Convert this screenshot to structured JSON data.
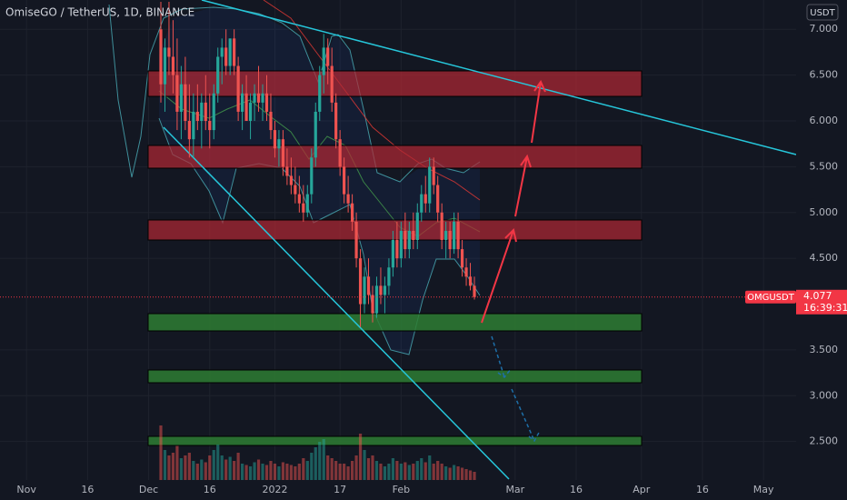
{
  "chart_data": {
    "type": "candlestick",
    "title": "OmiseGO / TetherUS, 1D, BINANCE",
    "currency": "USDT",
    "symbol": "OMGUSDT",
    "last_price": 4.077,
    "countdown": "16:39:31",
    "up_color": "#26a69a",
    "down_color": "#ef5350",
    "grid": true,
    "xlim": [
      -6.5,
      189
    ],
    "ylim": [
      2.08,
      7.32
    ],
    "xticks": [
      {
        "value": 0,
        "label": "Nov"
      },
      {
        "value": 15,
        "label": "16"
      },
      {
        "value": 30,
        "label": "Dec"
      },
      {
        "value": 45,
        "label": "16"
      },
      {
        "value": 61,
        "label": "2022"
      },
      {
        "value": 77,
        "label": "17"
      },
      {
        "value": 92,
        "label": "Feb"
      },
      {
        "value": 120,
        "label": "Mar"
      },
      {
        "value": 135,
        "label": "16"
      },
      {
        "value": 151,
        "label": "Apr"
      },
      {
        "value": 166,
        "label": "16"
      },
      {
        "value": 181,
        "label": "May"
      }
    ],
    "yticks": [
      {
        "value": 7,
        "label": "7.000"
      },
      {
        "value": 6.5,
        "label": "6.500"
      },
      {
        "value": 6,
        "label": "6.000"
      },
      {
        "value": 5.5,
        "label": "5.500"
      },
      {
        "value": 5,
        "label": "5.000"
      },
      {
        "value": 4.5,
        "label": "4.500"
      },
      {
        "value": 3.5,
        "label": "3.500"
      },
      {
        "value": 3,
        "label": "3.000"
      },
      {
        "value": 2.5,
        "label": "2.500"
      }
    ],
    "x": [
      33,
      34,
      35,
      36,
      37,
      38,
      39,
      40,
      41,
      42,
      43,
      44,
      45,
      46,
      47,
      48,
      49,
      50,
      51,
      52,
      53,
      54,
      55,
      56,
      57,
      58,
      59,
      60,
      61,
      62,
      63,
      64,
      65,
      66,
      67,
      68,
      69,
      70,
      71,
      72,
      73,
      74,
      75,
      76,
      77,
      78,
      79,
      80,
      81,
      82,
      83,
      84,
      85,
      86,
      87,
      88,
      89,
      90,
      91,
      92,
      93,
      94,
      95,
      96,
      97,
      98,
      99,
      100,
      101,
      102,
      103,
      104,
      105,
      106,
      107,
      108,
      109,
      110
    ],
    "open": [
      7.0,
      6.4,
      6.8,
      6.7,
      6.5,
      6.1,
      6.4,
      6.0,
      5.8,
      6.1,
      6.0,
      6.2,
      6.0,
      5.9,
      6.3,
      6.7,
      6.8,
      6.6,
      6.9,
      6.6,
      6.1,
      6.3,
      6.0,
      6.2,
      6.3,
      6.2,
      6.3,
      6.1,
      5.9,
      5.7,
      5.8,
      5.5,
      5.4,
      5.3,
      5.2,
      5.1,
      5.0,
      5.2,
      5.6,
      6.1,
      6.5,
      6.8,
      6.6,
      6.2,
      5.8,
      5.5,
      5.2,
      5.1,
      4.9,
      4.5,
      4.0,
      4.3,
      4.1,
      3.9,
      4.2,
      4.1,
      4.2,
      4.4,
      4.7,
      4.5,
      4.8,
      4.6,
      4.8,
      4.7,
      5.0,
      5.2,
      5.1,
      5.5,
      5.3,
      5.0,
      4.7,
      4.8,
      4.6,
      4.9,
      4.6,
      4.4,
      4.3,
      4.2
    ],
    "high": [
      7.3,
      6.9,
      7.3,
      7.1,
      6.9,
      6.6,
      6.7,
      6.4,
      6.3,
      6.4,
      6.3,
      6.5,
      6.3,
      6.4,
      6.8,
      6.9,
      7.0,
      6.9,
      7.0,
      6.7,
      6.4,
      6.5,
      6.3,
      6.4,
      6.6,
      6.4,
      6.5,
      6.3,
      6.0,
      5.9,
      5.9,
      5.7,
      5.6,
      5.5,
      5.4,
      5.3,
      5.3,
      5.7,
      6.2,
      6.6,
      6.95,
      6.9,
      6.8,
      6.3,
      5.9,
      5.6,
      5.4,
      5.2,
      5.0,
      4.6,
      4.4,
      4.5,
      4.2,
      4.3,
      4.4,
      4.3,
      4.5,
      4.8,
      4.9,
      4.9,
      5.0,
      4.9,
      5.0,
      5.1,
      5.3,
      5.4,
      5.6,
      5.6,
      5.4,
      5.1,
      4.9,
      4.9,
      5.0,
      5.0,
      4.7,
      4.5,
      4.45,
      4.3
    ],
    "low": [
      6.2,
      6.1,
      6.5,
      6.3,
      5.9,
      5.8,
      5.9,
      5.6,
      5.6,
      5.9,
      5.7,
      5.9,
      5.7,
      5.8,
      6.2,
      6.4,
      6.5,
      6.5,
      6.5,
      6.0,
      5.9,
      6.0,
      5.8,
      6.0,
      6.1,
      6.0,
      6.0,
      5.8,
      5.6,
      5.5,
      5.4,
      5.3,
      5.2,
      5.1,
      5.0,
      4.9,
      4.95,
      5.1,
      5.5,
      6.0,
      6.3,
      6.4,
      6.1,
      5.7,
      5.4,
      5.1,
      5.0,
      4.8,
      4.4,
      3.75,
      3.9,
      4.0,
      3.8,
      3.85,
      4.0,
      3.9,
      4.1,
      4.3,
      4.4,
      4.4,
      4.5,
      4.5,
      4.6,
      4.6,
      4.9,
      5.0,
      5.0,
      5.2,
      4.9,
      4.6,
      4.5,
      4.5,
      4.55,
      4.5,
      4.3,
      4.2,
      4.15,
      4.05
    ],
    "close": [
      6.4,
      6.8,
      6.7,
      6.5,
      6.1,
      6.4,
      6.0,
      5.8,
      6.1,
      6.0,
      6.2,
      6.0,
      5.9,
      6.3,
      6.7,
      6.8,
      6.6,
      6.9,
      6.6,
      6.1,
      6.3,
      6.0,
      6.2,
      6.3,
      6.2,
      6.3,
      6.1,
      5.9,
      5.7,
      5.8,
      5.5,
      5.4,
      5.3,
      5.2,
      5.1,
      5.0,
      5.2,
      5.6,
      6.1,
      6.5,
      6.8,
      6.6,
      6.2,
      5.8,
      5.5,
      5.2,
      5.1,
      4.9,
      4.5,
      4.0,
      4.3,
      4.1,
      3.9,
      4.2,
      4.1,
      4.2,
      4.4,
      4.7,
      4.5,
      4.8,
      4.6,
      4.8,
      4.7,
      5.0,
      5.2,
      5.1,
      5.5,
      5.3,
      5.0,
      4.7,
      4.8,
      4.6,
      4.9,
      4.6,
      4.4,
      4.3,
      4.2,
      4.077
    ],
    "volume": [
      40,
      22,
      18,
      20,
      25,
      16,
      18,
      20,
      14,
      12,
      15,
      13,
      18,
      22,
      26,
      18,
      15,
      17,
      14,
      20,
      12,
      11,
      10,
      13,
      15,
      12,
      11,
      14,
      12,
      10,
      13,
      12,
      11,
      10,
      12,
      16,
      14,
      20,
      24,
      28,
      30,
      18,
      16,
      14,
      12,
      12,
      10,
      14,
      18,
      34,
      22,
      16,
      18,
      14,
      12,
      10,
      12,
      16,
      14,
      12,
      13,
      11,
      12,
      14,
      16,
      13,
      18,
      12,
      14,
      12,
      10,
      9,
      11,
      10,
      9,
      8,
      7,
      6
    ]
  }
}
